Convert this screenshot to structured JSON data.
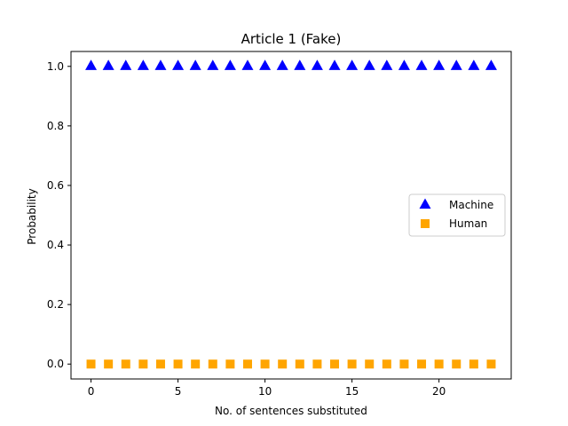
{
  "chart_data": {
    "type": "scatter",
    "title": "Article 1 (Fake)",
    "xlabel": "No. of sentences substituted",
    "ylabel": "Probability",
    "xlim": [
      -1.15,
      24.15
    ],
    "ylim": [
      -0.05,
      1.05
    ],
    "xticks": [
      0,
      5,
      10,
      15,
      20
    ],
    "xtick_labels": [
      "0",
      "5",
      "10",
      "15",
      "20"
    ],
    "yticks": [
      0.0,
      0.2,
      0.4,
      0.6,
      0.8,
      1.0
    ],
    "ytick_labels": [
      "0.0",
      "0.2",
      "0.4",
      "0.6",
      "0.8",
      "1.0"
    ],
    "grid": false,
    "legend_position": "center-right",
    "series": [
      {
        "name": "Machine",
        "marker": "triangle",
        "color": "#0000ff",
        "x": [
          0,
          1,
          2,
          3,
          4,
          5,
          6,
          7,
          8,
          9,
          10,
          11,
          12,
          13,
          14,
          15,
          16,
          17,
          18,
          19,
          20,
          21,
          22,
          23
        ],
        "y": [
          1,
          1,
          1,
          1,
          1,
          1,
          1,
          1,
          1,
          1,
          1,
          1,
          1,
          1,
          1,
          1,
          1,
          1,
          1,
          1,
          1,
          1,
          1,
          1
        ]
      },
      {
        "name": "Human",
        "marker": "square",
        "color": "#ffa500",
        "x": [
          0,
          1,
          2,
          3,
          4,
          5,
          6,
          7,
          8,
          9,
          10,
          11,
          12,
          13,
          14,
          15,
          16,
          17,
          18,
          19,
          20,
          21,
          22,
          23
        ],
        "y": [
          0,
          0,
          0,
          0,
          0,
          0,
          0,
          0,
          0,
          0,
          0,
          0,
          0,
          0,
          0,
          0,
          0,
          0,
          0,
          0,
          0,
          0,
          0,
          0
        ]
      }
    ]
  }
}
